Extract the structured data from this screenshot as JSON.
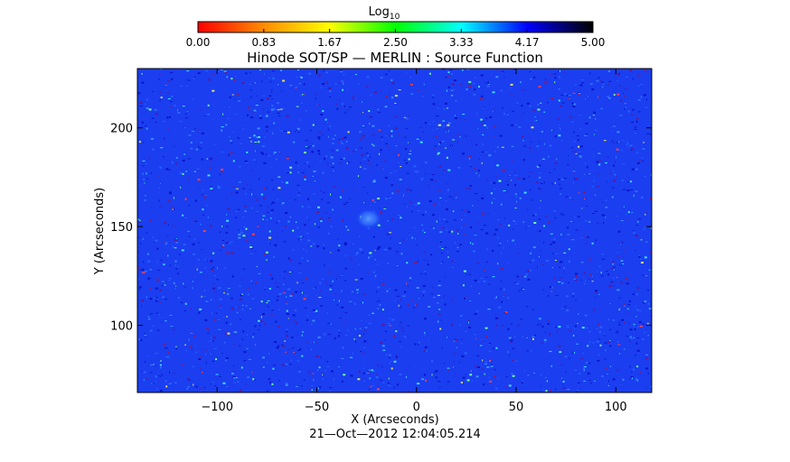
{
  "chart_data": {
    "type": "heatmap",
    "title": "Hinode SOT/SP — MERLIN : Source Function",
    "colorbar": {
      "label": "Log",
      "label_subscript": "10",
      "ticks": [
        "0.00",
        "0.83",
        "1.67",
        "2.50",
        "3.33",
        "4.17",
        "5.00"
      ],
      "range": [
        0,
        5
      ],
      "colormap": [
        "#ff0000",
        "#ff8c00",
        "#ffff00",
        "#00ff00",
        "#00ffff",
        "#0000ff",
        "#000000"
      ]
    },
    "xlabel": "X (Arcseconds)",
    "ylabel": "Y (Arcseconds)",
    "xlim": [
      -140,
      118
    ],
    "ylim": [
      66,
      230
    ],
    "xticks": [
      -100,
      -50,
      0,
      50,
      100
    ],
    "yticks": [
      100,
      150,
      200
    ],
    "dominant_value": 3.9,
    "field_color": "#1a3ef0",
    "blob_center": [
      -24,
      154
    ],
    "timestamp": "21—Oct—2012 12:04:05.214"
  }
}
